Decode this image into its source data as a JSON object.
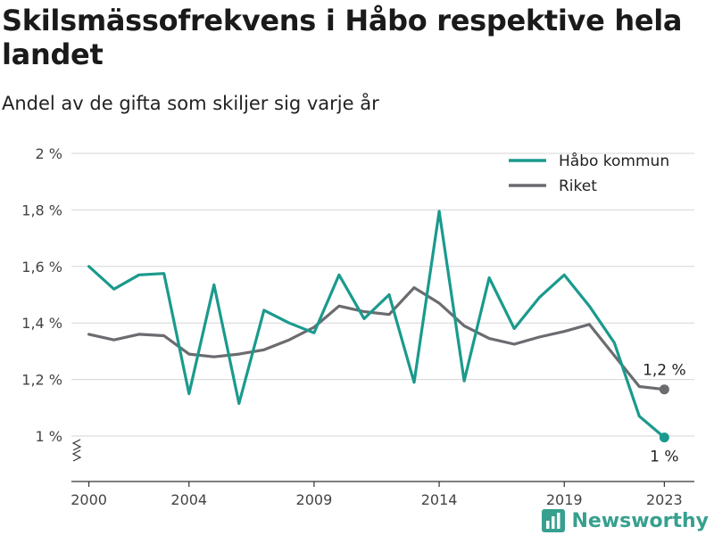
{
  "title": "Skilsmässofrekvens i Håbo respektive hela landet",
  "subtitle": "Andel av de gifta som skiljer sig varje år",
  "brand": {
    "name": "Newsworthy",
    "icon": "newsworthy-logo-icon",
    "color": "#37a08f"
  },
  "chart_data": {
    "type": "line",
    "title": "Skilsmässofrekvens i Håbo respektive hela landet",
    "subtitle": "Andel av de gifta som skiljer sig varje år",
    "xlabel": "",
    "ylabel": "",
    "x": [
      2000,
      2001,
      2002,
      2003,
      2004,
      2005,
      2006,
      2007,
      2008,
      2009,
      2010,
      2011,
      2012,
      2013,
      2014,
      2015,
      2016,
      2017,
      2018,
      2019,
      2020,
      2021,
      2022,
      2023
    ],
    "x_ticks": [
      2000,
      2004,
      2009,
      2014,
      2019,
      2023
    ],
    "y_ticks": [
      1.0,
      1.2,
      1.4,
      1.6,
      1.8,
      2.0
    ],
    "y_tick_labels": [
      "1 %",
      "1,2 %",
      "1,4 %",
      "1,6 %",
      "1,8 %",
      "2 %"
    ],
    "ylim": [
      0.85,
      2.0
    ],
    "xlim": [
      1999.3,
      2024.2
    ],
    "axis_break": true,
    "grid": true,
    "legend_position": "top-right",
    "series": [
      {
        "name": "Håbo kommun",
        "color": "#1a9a8d",
        "values": [
          1.6,
          1.52,
          1.57,
          1.575,
          1.15,
          1.535,
          1.115,
          1.445,
          1.4,
          1.365,
          1.57,
          1.415,
          1.5,
          1.19,
          1.795,
          1.195,
          1.56,
          1.38,
          1.49,
          1.57,
          1.46,
          1.33,
          1.07,
          0.995
        ],
        "end_label": "1 %"
      },
      {
        "name": "Riket",
        "color": "#6b6b70",
        "values": [
          1.36,
          1.34,
          1.36,
          1.355,
          1.29,
          1.28,
          1.29,
          1.305,
          1.34,
          1.385,
          1.46,
          1.44,
          1.43,
          1.525,
          1.47,
          1.39,
          1.345,
          1.325,
          1.35,
          1.37,
          1.395,
          1.285,
          1.175,
          1.165
        ],
        "end_label": "1,2 %"
      }
    ]
  }
}
